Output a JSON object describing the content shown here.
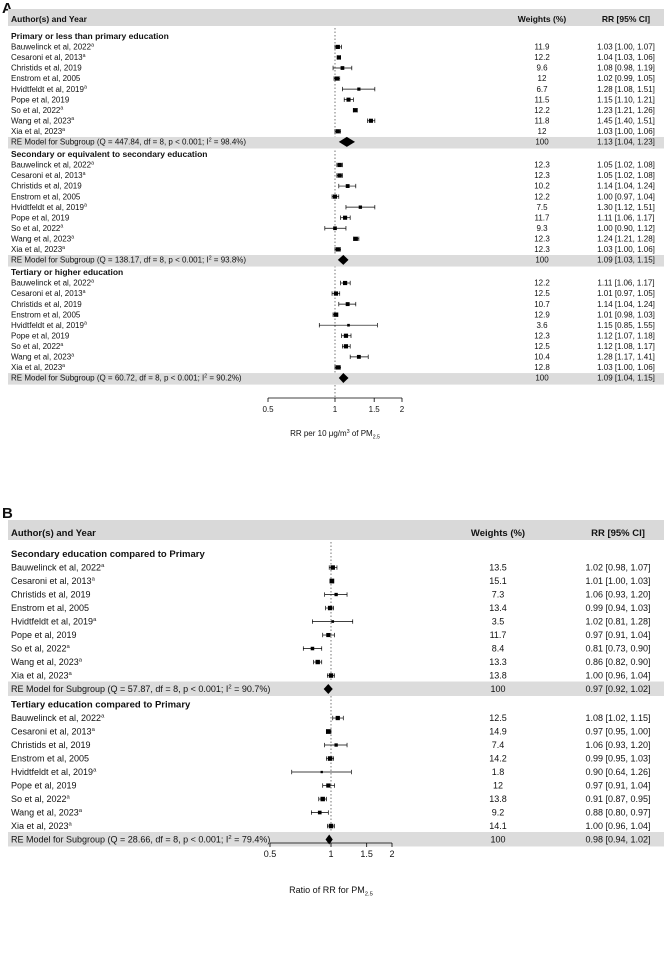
{
  "chart_data": [
    {
      "panel": "A",
      "type": "forest",
      "header": {
        "study": "Author(s) and Year",
        "weights": "Weights (%)",
        "rr": "RR [95% CI]"
      },
      "xlabel": {
        "main": "RR per 10 μg/m",
        "sup": "3",
        "mid": " of PM",
        "sub": "2.5"
      },
      "xticks": [
        {
          "v": 0.5,
          "label": "0.5"
        },
        {
          "v": 1,
          "label": "1"
        },
        {
          "v": 1.5,
          "label": "1.5"
        },
        {
          "v": 2,
          "label": "2"
        }
      ],
      "xlim": [
        0.5,
        2
      ],
      "scale": "log",
      "reference_line": 1,
      "groups": [
        {
          "title": "Primary or less than primary education",
          "studies": [
            {
              "name": "Bauwelinck et al, 2022",
              "sup": "a",
              "weight": "11.9",
              "rr": 1.03,
              "lo": 1.0,
              "hi": 1.07,
              "ci_text": "1.03 [1.00, 1.07]"
            },
            {
              "name": "Cesaroni et al, 2013",
              "sup": "a",
              "weight": "12.2",
              "rr": 1.04,
              "lo": 1.03,
              "hi": 1.06,
              "ci_text": "1.04 [1.03, 1.06]"
            },
            {
              "name": "Christids et al, 2019",
              "sup": "",
              "weight": "9.6",
              "rr": 1.08,
              "lo": 0.98,
              "hi": 1.19,
              "ci_text": "1.08 [0.98, 1.19]"
            },
            {
              "name": "Enstrom et al, 2005",
              "sup": "",
              "weight": "12",
              "rr": 1.02,
              "lo": 0.99,
              "hi": 1.05,
              "ci_text": "1.02 [0.99, 1.05]"
            },
            {
              "name": "Hvidtfeldt et al, 2019",
              "sup": "a",
              "weight": "6.7",
              "rr": 1.28,
              "lo": 1.08,
              "hi": 1.51,
              "ci_text": "1.28 [1.08, 1.51]"
            },
            {
              "name": "Pope et al, 2019",
              "sup": "",
              "weight": "11.5",
              "rr": 1.15,
              "lo": 1.1,
              "hi": 1.21,
              "ci_text": "1.15 [1.10, 1.21]"
            },
            {
              "name": "So et al, 2022",
              "sup": "a",
              "weight": "12.2",
              "rr": 1.23,
              "lo": 1.21,
              "hi": 1.26,
              "ci_text": "1.23 [1.21, 1.26]"
            },
            {
              "name": "Wang et al, 2023",
              "sup": "a",
              "weight": "11.8",
              "rr": 1.45,
              "lo": 1.4,
              "hi": 1.51,
              "ci_text": "1.45 [1.40, 1.51]"
            },
            {
              "name": "Xia et al, 2023",
              "sup": "a",
              "weight": "12",
              "rr": 1.03,
              "lo": 1.0,
              "hi": 1.06,
              "ci_text": "1.03 [1.00, 1.06]"
            }
          ],
          "summary": {
            "label": "RE Model for Subgroup (Q = 447.84, df = 8, p < 0.001; I",
            "sup": "2",
            "tail": " = 98.4%)",
            "weight": "100",
            "rr": 1.13,
            "lo": 1.04,
            "hi": 1.23,
            "ci_text": "1.13 [1.04, 1.23]"
          }
        },
        {
          "title": "Secondary or equivalent to secondary education",
          "studies": [
            {
              "name": "Bauwelinck et al, 2022",
              "sup": "a",
              "weight": "12.3",
              "rr": 1.05,
              "lo": 1.02,
              "hi": 1.08,
              "ci_text": "1.05 [1.02, 1.08]"
            },
            {
              "name": "Cesaroni et al, 2013",
              "sup": "a",
              "weight": "12.3",
              "rr": 1.05,
              "lo": 1.02,
              "hi": 1.08,
              "ci_text": "1.05 [1.02, 1.08]"
            },
            {
              "name": "Christids et al, 2019",
              "sup": "",
              "weight": "10.2",
              "rr": 1.14,
              "lo": 1.04,
              "hi": 1.24,
              "ci_text": "1.14 [1.04, 1.24]"
            },
            {
              "name": "Enstrom et al, 2005",
              "sup": "",
              "weight": "12.2",
              "rr": 1.0,
              "lo": 0.97,
              "hi": 1.04,
              "ci_text": "1.00 [0.97, 1.04]"
            },
            {
              "name": "Hvidtfeldt et al, 2019",
              "sup": "a",
              "weight": "7.5",
              "rr": 1.3,
              "lo": 1.12,
              "hi": 1.51,
              "ci_text": "1.30 [1.12, 1.51]"
            },
            {
              "name": "Pope et al, 2019",
              "sup": "",
              "weight": "11.7",
              "rr": 1.11,
              "lo": 1.06,
              "hi": 1.17,
              "ci_text": "1.11 [1.06, 1.17]"
            },
            {
              "name": "So et al, 2022",
              "sup": "a",
              "weight": "9.3",
              "rr": 1.0,
              "lo": 0.9,
              "hi": 1.12,
              "ci_text": "1.00 [0.90, 1.12]"
            },
            {
              "name": "Wang et al, 2023",
              "sup": "a",
              "weight": "12.3",
              "rr": 1.24,
              "lo": 1.21,
              "hi": 1.28,
              "ci_text": "1.24 [1.21, 1.28]"
            },
            {
              "name": "Xia et al, 2023",
              "sup": "a",
              "weight": "12.3",
              "rr": 1.03,
              "lo": 1.0,
              "hi": 1.06,
              "ci_text": "1.03 [1.00, 1.06]"
            }
          ],
          "summary": {
            "label": "RE Model for Subgroup (Q = 138.17, df = 8, p < 0.001; I",
            "sup": "2",
            "tail": " = 93.8%)",
            "weight": "100",
            "rr": 1.09,
            "lo": 1.03,
            "hi": 1.15,
            "ci_text": "1.09 [1.03, 1.15]"
          }
        },
        {
          "title": "Tertiary or higher education",
          "studies": [
            {
              "name": "Bauwelinck et al, 2022",
              "sup": "a",
              "weight": "12.2",
              "rr": 1.11,
              "lo": 1.06,
              "hi": 1.17,
              "ci_text": "1.11 [1.06, 1.17]"
            },
            {
              "name": "Cesaroni et al, 2013",
              "sup": "a",
              "weight": "12.5",
              "rr": 1.01,
              "lo": 0.97,
              "hi": 1.05,
              "ci_text": "1.01 [0.97, 1.05]"
            },
            {
              "name": "Christids et al, 2019",
              "sup": "",
              "weight": "10.7",
              "rr": 1.14,
              "lo": 1.04,
              "hi": 1.24,
              "ci_text": "1.14 [1.04, 1.24]"
            },
            {
              "name": "Enstrom et al, 2005",
              "sup": "",
              "weight": "12.9",
              "rr": 1.01,
              "lo": 0.98,
              "hi": 1.03,
              "ci_text": "1.01 [0.98, 1.03]"
            },
            {
              "name": "Hvidtfeldt et al, 2019",
              "sup": "a",
              "weight": "3.6",
              "rr": 1.15,
              "lo": 0.85,
              "hi": 1.55,
              "ci_text": "1.15 [0.85, 1.55]"
            },
            {
              "name": "Pope et al, 2019",
              "sup": "",
              "weight": "12.3",
              "rr": 1.12,
              "lo": 1.07,
              "hi": 1.18,
              "ci_text": "1.12 [1.07, 1.18]"
            },
            {
              "name": "So et al, 2022",
              "sup": "a",
              "weight": "12.5",
              "rr": 1.12,
              "lo": 1.08,
              "hi": 1.17,
              "ci_text": "1.12 [1.08, 1.17]"
            },
            {
              "name": "Wang et al, 2023",
              "sup": "a",
              "weight": "10.4",
              "rr": 1.28,
              "lo": 1.17,
              "hi": 1.41,
              "ci_text": "1.28 [1.17, 1.41]"
            },
            {
              "name": "Xia et al, 2023",
              "sup": "a",
              "weight": "12.8",
              "rr": 1.03,
              "lo": 1.0,
              "hi": 1.06,
              "ci_text": "1.03 [1.00, 1.06]"
            }
          ],
          "summary": {
            "label": "RE Model for Subgroup (Q = 60.72, df = 8, p < 0.001; I",
            "sup": "2",
            "tail": " = 90.2%)",
            "weight": "100",
            "rr": 1.09,
            "lo": 1.04,
            "hi": 1.15,
            "ci_text": "1.09 [1.04, 1.15]"
          }
        }
      ]
    },
    {
      "panel": "B",
      "type": "forest",
      "header": {
        "study": "Author(s) and Year",
        "weights": "Weights (%)",
        "rr": "RR [95% CI]"
      },
      "xlabel": {
        "main": "Ratio of RR for PM",
        "sup": "",
        "mid": "",
        "sub": "2.5"
      },
      "xticks": [
        {
          "v": 0.5,
          "label": "0.5"
        },
        {
          "v": 1,
          "label": "1"
        },
        {
          "v": 1.5,
          "label": "1.5"
        },
        {
          "v": 2,
          "label": "2"
        }
      ],
      "xlim": [
        0.5,
        2
      ],
      "scale": "log",
      "reference_line": 1,
      "groups": [
        {
          "title": "Secondary education compared to Primary",
          "studies": [
            {
              "name": "Bauwelinck et al, 2022",
              "sup": "a",
              "weight": "13.5",
              "rr": 1.02,
              "lo": 0.98,
              "hi": 1.07,
              "ci_text": "1.02 [0.98, 1.07]"
            },
            {
              "name": "Cesaroni et al, 2013",
              "sup": "a",
              "weight": "15.1",
              "rr": 1.01,
              "lo": 1.0,
              "hi": 1.03,
              "ci_text": "1.01 [1.00, 1.03]"
            },
            {
              "name": "Christids et al, 2019",
              "sup": "",
              "weight": "7.3",
              "rr": 1.06,
              "lo": 0.93,
              "hi": 1.2,
              "ci_text": "1.06 [0.93, 1.20]"
            },
            {
              "name": "Enstrom et al, 2005",
              "sup": "",
              "weight": "13.4",
              "rr": 0.99,
              "lo": 0.94,
              "hi": 1.03,
              "ci_text": "0.99 [0.94, 1.03]"
            },
            {
              "name": "Hvidtfeldt et al, 2019",
              "sup": "a",
              "weight": "3.5",
              "rr": 1.02,
              "lo": 0.81,
              "hi": 1.28,
              "ci_text": "1.02 [0.81, 1.28]"
            },
            {
              "name": "Pope et al, 2019",
              "sup": "",
              "weight": "11.7",
              "rr": 0.97,
              "lo": 0.91,
              "hi": 1.04,
              "ci_text": "0.97 [0.91, 1.04]"
            },
            {
              "name": "So et al, 2022",
              "sup": "a",
              "weight": "8.4",
              "rr": 0.81,
              "lo": 0.73,
              "hi": 0.9,
              "ci_text": "0.81 [0.73, 0.90]"
            },
            {
              "name": "Wang et al, 2023",
              "sup": "a",
              "weight": "13.3",
              "rr": 0.86,
              "lo": 0.82,
              "hi": 0.9,
              "ci_text": "0.86 [0.82, 0.90]"
            },
            {
              "name": "Xia et al, 2023",
              "sup": "a",
              "weight": "13.8",
              "rr": 1.0,
              "lo": 0.96,
              "hi": 1.04,
              "ci_text": "1.00 [0.96, 1.04]"
            }
          ],
          "summary": {
            "label": "RE Model for Subgroup (Q = 57.87, df = 8, p < 0.001; I",
            "sup": "2",
            "tail": " = 90.7%)",
            "weight": "100",
            "rr": 0.97,
            "lo": 0.92,
            "hi": 1.02,
            "ci_text": "0.97 [0.92, 1.02]"
          }
        },
        {
          "title": "Tertiary education compared to Primary",
          "studies": [
            {
              "name": "Bauwelinck et al, 2022",
              "sup": "a",
              "weight": "12.5",
              "rr": 1.08,
              "lo": 1.02,
              "hi": 1.15,
              "ci_text": "1.08 [1.02, 1.15]"
            },
            {
              "name": "Cesaroni et al, 2013",
              "sup": "a",
              "weight": "14.9",
              "rr": 0.97,
              "lo": 0.95,
              "hi": 1.0,
              "ci_text": "0.97 [0.95, 1.00]"
            },
            {
              "name": "Christids et al, 2019",
              "sup": "",
              "weight": "7.4",
              "rr": 1.06,
              "lo": 0.93,
              "hi": 1.2,
              "ci_text": "1.06 [0.93, 1.20]"
            },
            {
              "name": "Enstrom et al, 2005",
              "sup": "",
              "weight": "14.2",
              "rr": 0.99,
              "lo": 0.95,
              "hi": 1.03,
              "ci_text": "0.99 [0.95, 1.03]"
            },
            {
              "name": "Hvidtfeldt et al, 2019",
              "sup": "a",
              "weight": "1.8",
              "rr": 0.9,
              "lo": 0.64,
              "hi": 1.26,
              "ci_text": "0.90 [0.64, 1.26]"
            },
            {
              "name": "Pope et al, 2019",
              "sup": "",
              "weight": "12",
              "rr": 0.97,
              "lo": 0.91,
              "hi": 1.04,
              "ci_text": "0.97 [0.91, 1.04]"
            },
            {
              "name": "So et al, 2022",
              "sup": "a",
              "weight": "13.8",
              "rr": 0.91,
              "lo": 0.87,
              "hi": 0.95,
              "ci_text": "0.91 [0.87, 0.95]"
            },
            {
              "name": "Wang et al, 2023",
              "sup": "a",
              "weight": "9.2",
              "rr": 0.88,
              "lo": 0.8,
              "hi": 0.97,
              "ci_text": "0.88 [0.80, 0.97]"
            },
            {
              "name": "Xia et al, 2023",
              "sup": "a",
              "weight": "14.1",
              "rr": 1.0,
              "lo": 0.96,
              "hi": 1.04,
              "ci_text": "1.00 [0.96, 1.04]"
            }
          ],
          "summary": {
            "label": "RE Model for Subgroup (Q = 28.66, df = 8, p < 0.001; I",
            "sup": "2",
            "tail": " = 79.4%)",
            "weight": "100",
            "rr": 0.98,
            "lo": 0.94,
            "hi": 1.02,
            "ci_text": "0.98 [0.94, 1.02]"
          }
        }
      ]
    }
  ],
  "colors": {
    "header_bg": "#d9d9d9",
    "summary_bg": "#dcdcdc",
    "marker": "#000000",
    "ref_line": "#555555"
  }
}
